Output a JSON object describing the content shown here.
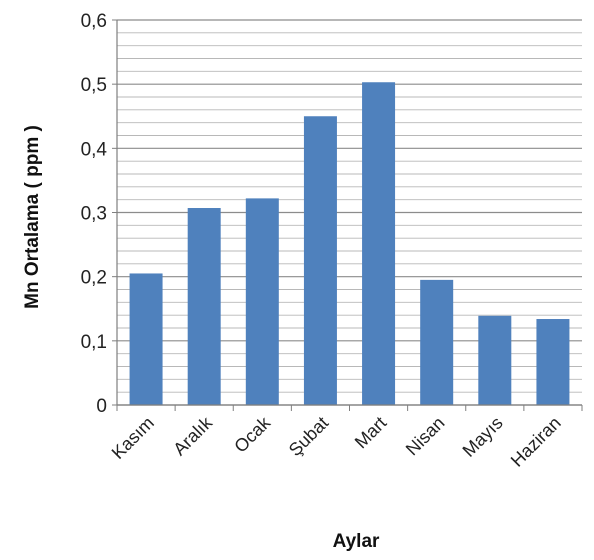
{
  "chart_data": {
    "type": "bar",
    "categories": [
      "Kasım",
      "Aralık",
      "Ocak",
      "Şubat",
      "Mart",
      "Nisan",
      "Mayıs",
      "Haziran"
    ],
    "series": [
      {
        "values": [
          0.205,
          0.307,
          0.322,
          0.45,
          0.503,
          0.195,
          0.139,
          0.134
        ],
        "color": "#4f81bd"
      }
    ],
    "xlabel": "Aylar",
    "ylabel": "Mn Ortalama ( ppm )",
    "ylim": [
      0,
      0.6
    ],
    "yticks": [
      "0",
      "0,1",
      "0,2",
      "0,3",
      "0,4",
      "0,5",
      "0,6"
    ],
    "minor_grid_step": 0.02,
    "grid": true,
    "legend": "none"
  }
}
